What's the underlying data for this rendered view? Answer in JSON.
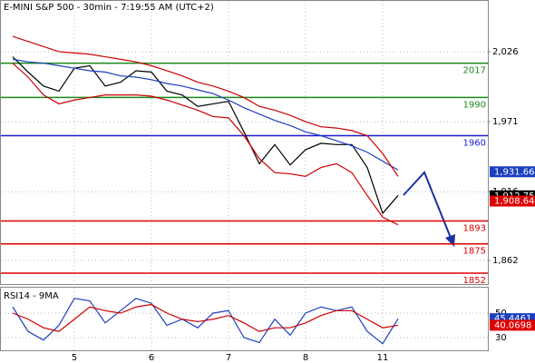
{
  "chart_data": {
    "type": "line",
    "title": "E-MINI S&P 500 - 30min - 7:19:55 AM (UTC+2)",
    "categories": [
      null,
      null,
      null,
      null,
      "5",
      null,
      null,
      null,
      null,
      "6",
      null,
      null,
      null,
      null,
      "7",
      null,
      null,
      null,
      null,
      "8",
      null,
      null,
      null,
      null,
      "11",
      null
    ],
    "ylim": [
      1842,
      2066.6
    ],
    "yticks": [
      {
        "value": 2026,
        "label": "2,026"
      },
      {
        "value": 1971,
        "label": "1,971"
      },
      {
        "value": 1916,
        "label": "1,916"
      },
      {
        "value": 1862,
        "label": "1,862"
      }
    ],
    "grid": true,
    "series": [
      {
        "color": "#000000",
        "values": [
          2022,
          2010,
          1999,
          1995,
          2013,
          2015,
          1999,
          2002,
          2011,
          2010,
          1995,
          1992,
          1983,
          1985,
          1987,
          1963,
          1938,
          1953,
          1937,
          1949,
          1954,
          1953,
          1953,
          1935,
          1899,
          1913
        ]
      },
      {
        "color": "#1f3fbf",
        "values": [
          2020,
          2018,
          2017,
          2015,
          2013,
          2011,
          2010,
          2007,
          2006,
          2004,
          2001,
          1999,
          1996,
          1993,
          1988,
          1982,
          1977,
          1972,
          1968,
          1963,
          1960,
          1956,
          1952,
          1947,
          1940,
          1933
        ]
      },
      {
        "color": "#cc0000",
        "values": [
          2038,
          2034,
          2030,
          2026,
          2025,
          2024,
          2022,
          2020,
          2018,
          2015,
          2011,
          2007,
          2002,
          1999,
          1995,
          1990,
          1983,
          1980,
          1976,
          1971,
          1967,
          1966,
          1964,
          1960,
          1946,
          1928
        ]
      },
      {
        "color": "#cc0000",
        "values": [
          2017,
          2006,
          1992,
          1985,
          1988,
          1990,
          1992,
          1992,
          1992,
          1991,
          1988,
          1984,
          1980,
          1975,
          1974,
          1960,
          1942,
          1931,
          1930,
          1928,
          1935,
          1938,
          1931,
          1913,
          1896,
          1890
        ]
      }
    ],
    "levels": [
      {
        "value": 2017,
        "color": "#1a8a1a"
      },
      {
        "value": 1990,
        "color": "#1a8a1a"
      },
      {
        "value": 1960,
        "color": "#1a1acc"
      },
      {
        "value": 1893,
        "color": "#dd0000"
      },
      {
        "value": 1875,
        "color": "#dd0000"
      },
      {
        "value": 1852,
        "color": "#dd0000"
      }
    ],
    "price_tags": [
      {
        "value": 1931.66,
        "label": "1,931.66",
        "color": "#1a3fbf"
      },
      {
        "value": 1912.75,
        "label": "1,912.75",
        "color": "#000000"
      },
      {
        "value": 1908.64,
        "label": "1,908.64",
        "color": "#dd0000"
      }
    ],
    "rsi": {
      "title": "RSI14 - 9MA",
      "ylim": [
        20,
        70
      ],
      "yticks": [
        50,
        30
      ],
      "series": [
        {
          "color": "#1f3fbf",
          "values": [
            55,
            35,
            28,
            40,
            62,
            60,
            42,
            52,
            62,
            58,
            40,
            45,
            38,
            50,
            52,
            30,
            26,
            45,
            32,
            50,
            55,
            52,
            55,
            35,
            25,
            45.4461
          ]
        },
        {
          "color": "#cc0000",
          "values": [
            50,
            45,
            38,
            35,
            45,
            55,
            52,
            50,
            55,
            57,
            50,
            45,
            43,
            45,
            48,
            42,
            35,
            38,
            38,
            42,
            48,
            52,
            52,
            45,
            38,
            40.0698
          ]
        }
      ],
      "tags": [
        {
          "value": 45.4461,
          "label": "45.4461",
          "color": "#1a3fbf"
        },
        {
          "value": 40.0698,
          "label": "40.0698",
          "color": "#dd0000"
        }
      ]
    }
  }
}
